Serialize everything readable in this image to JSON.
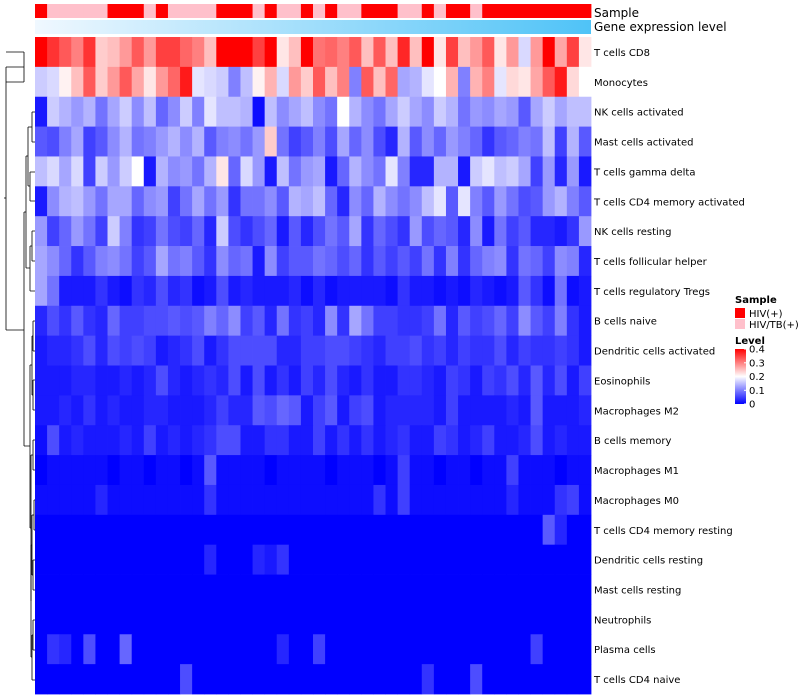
{
  "chart_data": {
    "type": "heatmap",
    "annotation_tracks": [
      {
        "name": "Sample"
      },
      {
        "name": "Gene expression level"
      }
    ],
    "rows": [
      "T cells CD8",
      "Monocytes",
      "NK cells activated",
      "Mast cells activated",
      "T cells gamma delta",
      "T cells CD4 memory activated",
      "NK cells resting",
      "T cells follicular helper",
      "T cells regulatory  Tregs",
      "B cells naive",
      "Dendritic cells activated",
      "Eosinophils",
      "Macrophages M2",
      "B cells memory",
      "Macrophages M1",
      "Macrophages M0",
      "T cells CD4 memory resting",
      "Dendritic cells resting",
      "Mast cells resting",
      "Neutrophils",
      "Plasma cells",
      "T cells CD4 naive"
    ],
    "n_columns": 46,
    "sample_groups": [
      1,
      2,
      2,
      2,
      2,
      2,
      1,
      1,
      1,
      2,
      1,
      2,
      2,
      2,
      2,
      1,
      1,
      1,
      2,
      1,
      2,
      2,
      1,
      2,
      1,
      2,
      2,
      1,
      1,
      1,
      2,
      2,
      1,
      2,
      1,
      1,
      2,
      1,
      1,
      1,
      1,
      1,
      1,
      1,
      1,
      1
    ],
    "values": [
      [
        0.4,
        0.36,
        0.33,
        0.3,
        0.36,
        0.24,
        0.25,
        0.28,
        0.33,
        0.28,
        0.35,
        0.35,
        0.32,
        0.3,
        0.25,
        0.41,
        0.42,
        0.4,
        0.35,
        0.42,
        0.22,
        0.25,
        0.4,
        0.31,
        0.32,
        0.3,
        0.33,
        0.25,
        0.33,
        0.25,
        0.37,
        0.25,
        0.41,
        0.22,
        0.35,
        0.25,
        0.28,
        0.33,
        0.22,
        0.28,
        0.17,
        0.28,
        0.41,
        0.27,
        0.35,
        0.22
      ],
      [
        0.16,
        0.17,
        0.21,
        0.25,
        0.33,
        0.24,
        0.28,
        0.33,
        0.27,
        0.22,
        0.28,
        0.32,
        0.38,
        0.18,
        0.17,
        0.16,
        0.1,
        0.15,
        0.21,
        0.26,
        0.17,
        0.28,
        0.24,
        0.33,
        0.25,
        0.3,
        0.1,
        0.33,
        0.25,
        0.32,
        0.13,
        0.14,
        0.18,
        0.2,
        0.26,
        0.1,
        0.26,
        0.3,
        0.18,
        0.23,
        0.22,
        0.27,
        0.33,
        0.38,
        0.23,
        0.2
      ],
      [
        0.02,
        0.16,
        0.14,
        0.12,
        0.14,
        0.09,
        0.13,
        0.16,
        0.11,
        0.15,
        0.08,
        0.11,
        0.16,
        0.1,
        0.18,
        0.15,
        0.15,
        0.14,
        0.01,
        0.15,
        0.11,
        0.13,
        0.15,
        0.11,
        0.09,
        0.2,
        0.14,
        0.11,
        0.09,
        0.13,
        0.16,
        0.13,
        0.11,
        0.16,
        0.14,
        0.09,
        0.12,
        0.11,
        0.13,
        0.12,
        0.07,
        0.13,
        0.16,
        0.13,
        0.15,
        0.15
      ],
      [
        0.07,
        0.06,
        0.1,
        0.13,
        0.05,
        0.07,
        0.11,
        0.14,
        0.09,
        0.1,
        0.12,
        0.14,
        0.11,
        0.14,
        0.07,
        0.1,
        0.11,
        0.09,
        0.12,
        0.24,
        0.09,
        0.05,
        0.07,
        0.1,
        0.06,
        0.13,
        0.08,
        0.11,
        0.06,
        0.03,
        0.14,
        0.07,
        0.11,
        0.08,
        0.12,
        0.1,
        0.08,
        0.04,
        0.07,
        0.08,
        0.1,
        0.09,
        0.15,
        0.05,
        0.14,
        0.07
      ],
      [
        0.15,
        0.17,
        0.13,
        0.17,
        0.05,
        0.16,
        0.12,
        0.16,
        0.2,
        0.02,
        0.14,
        0.11,
        0.12,
        0.09,
        0.14,
        0.22,
        0.08,
        0.17,
        0.12,
        0.02,
        0.15,
        0.09,
        0.12,
        0.13,
        0.02,
        0.08,
        0.14,
        0.11,
        0.09,
        0.18,
        0.1,
        0.03,
        0.03,
        0.14,
        0.14,
        0.02,
        0.16,
        0.18,
        0.15,
        0.16,
        0.13,
        0.05,
        0.12,
        0.03,
        0.12,
        0.02
      ],
      [
        0.02,
        0.11,
        0.14,
        0.15,
        0.12,
        0.09,
        0.13,
        0.13,
        0.08,
        0.11,
        0.12,
        0.05,
        0.09,
        0.13,
        0.09,
        0.12,
        0.04,
        0.09,
        0.09,
        0.11,
        0.07,
        0.14,
        0.13,
        0.15,
        0.08,
        0.03,
        0.11,
        0.08,
        0.14,
        0.11,
        0.09,
        0.11,
        0.15,
        0.18,
        0.07,
        0.18,
        0.1,
        0.07,
        0.12,
        0.09,
        0.06,
        0.07,
        0.12,
        0.14,
        0.1,
        0.07
      ],
      [
        0.12,
        0.05,
        0.08,
        0.12,
        0.09,
        0.05,
        0.16,
        0.1,
        0.04,
        0.05,
        0.09,
        0.06,
        0.05,
        0.08,
        0.03,
        0.16,
        0.06,
        0.04,
        0.06,
        0.08,
        0.02,
        0.07,
        0.03,
        0.06,
        0.09,
        0.07,
        0.13,
        0.04,
        0.08,
        0.06,
        0.04,
        0.12,
        0.06,
        0.08,
        0.07,
        0.03,
        0.11,
        0.02,
        0.09,
        0.05,
        0.07,
        0.03,
        0.03,
        0.02,
        0.04,
        0.12
      ],
      [
        0.13,
        0.11,
        0.08,
        0.04,
        0.07,
        0.1,
        0.11,
        0.09,
        0.05,
        0.07,
        0.13,
        0.09,
        0.1,
        0.07,
        0.04,
        0.11,
        0.08,
        0.09,
        0.02,
        0.11,
        0.05,
        0.07,
        0.07,
        0.09,
        0.08,
        0.06,
        0.08,
        0.04,
        0.07,
        0.05,
        0.07,
        0.05,
        0.09,
        0.04,
        0.1,
        0.04,
        0.08,
        0.1,
        0.11,
        0.04,
        0.09,
        0.08,
        0.05,
        0.11,
        0.1,
        0.03
      ],
      [
        0.13,
        0.09,
        0.02,
        0.02,
        0.02,
        0.04,
        0.02,
        0.01,
        0.04,
        0.03,
        0.06,
        0.03,
        0.04,
        0.01,
        0.02,
        0.06,
        0.02,
        0.03,
        0.02,
        0.02,
        0.02,
        0.03,
        0.01,
        0.03,
        0.01,
        0.02,
        0.02,
        0.02,
        0.02,
        0.01,
        0.04,
        0.02,
        0.02,
        0.01,
        0.02,
        0.01,
        0.03,
        0.02,
        0.01,
        0.02,
        0.07,
        0.04,
        0.01,
        0.09,
        0.01,
        0.02
      ],
      [
        0.03,
        0.06,
        0.04,
        0.07,
        0.04,
        0.03,
        0.08,
        0.05,
        0.05,
        0.06,
        0.06,
        0.07,
        0.06,
        0.07,
        0.1,
        0.08,
        0.11,
        0.05,
        0.07,
        0.03,
        0.09,
        0.04,
        0.05,
        0.03,
        0.11,
        0.04,
        0.13,
        0.09,
        0.05,
        0.05,
        0.04,
        0.04,
        0.05,
        0.09,
        0.03,
        0.07,
        0.05,
        0.06,
        0.08,
        0.05,
        0.11,
        0.07,
        0.05,
        0.1,
        0.04,
        0.02
      ],
      [
        0.02,
        0.03,
        0.03,
        0.04,
        0.06,
        0.03,
        0.06,
        0.05,
        0.06,
        0.05,
        0.02,
        0.03,
        0.04,
        0.06,
        0.02,
        0.04,
        0.06,
        0.06,
        0.06,
        0.06,
        0.03,
        0.03,
        0.05,
        0.05,
        0.06,
        0.06,
        0.05,
        0.04,
        0.03,
        0.05,
        0.05,
        0.06,
        0.04,
        0.05,
        0.03,
        0.05,
        0.04,
        0.04,
        0.06,
        0.03,
        0.05,
        0.04,
        0.04,
        0.05,
        0.04,
        0.02
      ],
      [
        0.02,
        0.02,
        0.02,
        0.03,
        0.03,
        0.02,
        0.02,
        0.03,
        0.02,
        0.03,
        0.06,
        0.03,
        0.02,
        0.03,
        0.04,
        0.03,
        0.06,
        0.02,
        0.06,
        0.02,
        0.04,
        0.02,
        0.05,
        0.03,
        0.06,
        0.03,
        0.02,
        0.04,
        0.02,
        0.02,
        0.04,
        0.04,
        0.03,
        0.02,
        0.05,
        0.04,
        0.02,
        0.05,
        0.04,
        0.06,
        0.03,
        0.07,
        0.03,
        0.06,
        0.02,
        0.05
      ],
      [
        0.02,
        0.02,
        0.03,
        0.02,
        0.04,
        0.02,
        0.03,
        0.02,
        0.02,
        0.03,
        0.03,
        0.02,
        0.02,
        0.02,
        0.03,
        0.05,
        0.03,
        0.03,
        0.07,
        0.06,
        0.08,
        0.07,
        0.02,
        0.05,
        0.07,
        0.02,
        0.05,
        0.06,
        0.02,
        0.03,
        0.03,
        0.03,
        0.03,
        0.02,
        0.05,
        0.02,
        0.02,
        0.02,
        0.02,
        0.03,
        0.02,
        0.07,
        0.02,
        0.02,
        0.02,
        0.03
      ],
      [
        0.01,
        0.06,
        0.02,
        0.03,
        0.02,
        0.02,
        0.02,
        0.03,
        0.02,
        0.05,
        0.02,
        0.03,
        0.02,
        0.03,
        0.04,
        0.06,
        0.06,
        0.02,
        0.02,
        0.04,
        0.04,
        0.02,
        0.02,
        0.05,
        0.02,
        0.04,
        0.02,
        0.04,
        0.02,
        0.03,
        0.04,
        0.02,
        0.02,
        0.05,
        0.04,
        0.02,
        0.03,
        0.05,
        0.02,
        0.02,
        0.03,
        0.06,
        0.02,
        0.03,
        0.02,
        0.02
      ],
      [
        0.0,
        0.01,
        0.01,
        0.01,
        0.01,
        0.01,
        0.0,
        0.01,
        0.01,
        0.0,
        0.01,
        0.01,
        0.0,
        0.01,
        0.07,
        0.01,
        0.01,
        0.01,
        0.01,
        0.0,
        0.01,
        0.01,
        0.01,
        0.01,
        0.0,
        0.01,
        0.01,
        0.01,
        0.0,
        0.01,
        0.05,
        0.01,
        0.01,
        0.0,
        0.01,
        0.01,
        0.0,
        0.01,
        0.01,
        0.05,
        0.01,
        0.01,
        0.01,
        0.0,
        0.01,
        0.01
      ],
      [
        0.01,
        0.01,
        0.01,
        0.01,
        0.01,
        0.03,
        0.01,
        0.01,
        0.01,
        0.01,
        0.01,
        0.01,
        0.01,
        0.01,
        0.04,
        0.01,
        0.01,
        0.01,
        0.01,
        0.01,
        0.01,
        0.01,
        0.01,
        0.01,
        0.01,
        0.01,
        0.01,
        0.01,
        0.04,
        0.01,
        0.05,
        0.01,
        0.01,
        0.01,
        0.01,
        0.01,
        0.01,
        0.01,
        0.01,
        0.03,
        0.01,
        0.01,
        0.01,
        0.04,
        0.05,
        0.01
      ],
      [
        0.0,
        0.0,
        0.0,
        0.0,
        0.0,
        0.0,
        0.0,
        0.0,
        0.0,
        0.0,
        0.0,
        0.0,
        0.0,
        0.0,
        0.0,
        0.0,
        0.0,
        0.0,
        0.0,
        0.0,
        0.0,
        0.0,
        0.0,
        0.0,
        0.0,
        0.0,
        0.0,
        0.0,
        0.0,
        0.0,
        0.0,
        0.0,
        0.0,
        0.0,
        0.0,
        0.0,
        0.0,
        0.0,
        0.0,
        0.0,
        0.0,
        0.0,
        0.07,
        0.03,
        0.0,
        0.0
      ],
      [
        0.0,
        0.0,
        0.0,
        0.0,
        0.0,
        0.0,
        0.0,
        0.0,
        0.0,
        0.0,
        0.0,
        0.0,
        0.0,
        0.0,
        0.03,
        0.0,
        0.0,
        0.0,
        0.03,
        0.02,
        0.04,
        0.0,
        0.0,
        0.0,
        0.0,
        0.0,
        0.0,
        0.0,
        0.0,
        0.0,
        0.0,
        0.0,
        0.0,
        0.0,
        0.0,
        0.0,
        0.0,
        0.0,
        0.0,
        0.0,
        0.0,
        0.0,
        0.0,
        0.0,
        0.0,
        0.0
      ],
      [
        0.0,
        0.0,
        0.0,
        0.0,
        0.0,
        0.0,
        0.0,
        0.0,
        0.0,
        0.0,
        0.0,
        0.0,
        0.0,
        0.0,
        0.0,
        0.0,
        0.0,
        0.0,
        0.0,
        0.0,
        0.0,
        0.0,
        0.0,
        0.0,
        0.0,
        0.0,
        0.0,
        0.0,
        0.0,
        0.0,
        0.0,
        0.0,
        0.0,
        0.0,
        0.0,
        0.0,
        0.0,
        0.0,
        0.0,
        0.0,
        0.0,
        0.0,
        0.0,
        0.0,
        0.0,
        0.0
      ],
      [
        0.0,
        0.0,
        0.0,
        0.0,
        0.0,
        0.0,
        0.0,
        0.0,
        0.0,
        0.0,
        0.0,
        0.0,
        0.0,
        0.0,
        0.0,
        0.0,
        0.0,
        0.0,
        0.0,
        0.0,
        0.0,
        0.0,
        0.0,
        0.0,
        0.0,
        0.0,
        0.0,
        0.0,
        0.0,
        0.0,
        0.0,
        0.0,
        0.0,
        0.0,
        0.0,
        0.0,
        0.0,
        0.0,
        0.0,
        0.0,
        0.0,
        0.0,
        0.0,
        0.0,
        0.0,
        0.0
      ],
      [
        0.0,
        0.04,
        0.03,
        0.0,
        0.06,
        0.0,
        0.0,
        0.08,
        0.0,
        0.0,
        0.0,
        0.0,
        0.0,
        0.0,
        0.0,
        0.0,
        0.0,
        0.0,
        0.0,
        0.0,
        0.03,
        0.0,
        0.0,
        0.05,
        0.0,
        0.0,
        0.0,
        0.0,
        0.0,
        0.0,
        0.0,
        0.0,
        0.0,
        0.0,
        0.0,
        0.0,
        0.0,
        0.0,
        0.0,
        0.0,
        0.0,
        0.05,
        0.0,
        0.0,
        0.0,
        0.0
      ],
      [
        0.0,
        0.0,
        0.0,
        0.0,
        0.0,
        0.0,
        0.0,
        0.0,
        0.0,
        0.0,
        0.0,
        0.0,
        0.06,
        0.0,
        0.0,
        0.0,
        0.0,
        0.0,
        0.0,
        0.0,
        0.0,
        0.0,
        0.0,
        0.0,
        0.0,
        0.0,
        0.0,
        0.0,
        0.0,
        0.0,
        0.0,
        0.0,
        0.04,
        0.0,
        0.0,
        0.0,
        0.06,
        0.0,
        0.0,
        0.0,
        0.0,
        0.0,
        0.0,
        0.0,
        0.0,
        0.0
      ]
    ],
    "color_scale": {
      "low": "#0000FF",
      "mid": "#FFFFFF",
      "high": "#FF0000",
      "domain": [
        0,
        0.2,
        0.4
      ]
    },
    "legend": {
      "sample": {
        "title": "Sample",
        "entries": [
          {
            "label": "HIV(+)",
            "color": "#FF0000"
          },
          {
            "label": "HIV/TB(+)",
            "color": "#FFC0CB"
          }
        ]
      },
      "level": {
        "title": "Level",
        "ticks": [
          "0.4",
          "0.3",
          "0.2",
          "0.1",
          "0"
        ],
        "tick_values": [
          0.4,
          0.3,
          0.2,
          0.1,
          0
        ]
      }
    },
    "expression_bar_colors": [
      "#F0F8FF",
      "#4FC3F7"
    ]
  }
}
